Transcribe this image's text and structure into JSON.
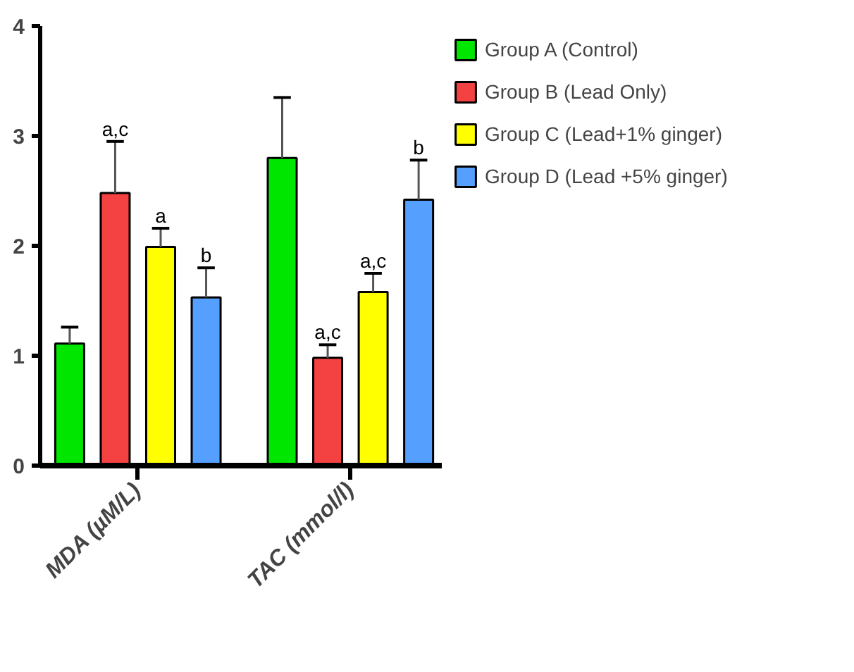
{
  "chart_data": {
    "type": "bar",
    "categories": [
      "MDA (µM/L)",
      "TAC (mmol/l)"
    ],
    "series": [
      {
        "name": "Group A (Control)",
        "color": "#00e600",
        "values": [
          1.11,
          2.8
        ],
        "errors": [
          [
            1.11,
            1.26
          ],
          [
            2.8,
            3.35
          ]
        ]
      },
      {
        "name": "Group B (Lead Only)",
        "color": "#f44242",
        "values": [
          2.48,
          0.98
        ],
        "errors": [
          [
            2.48,
            2.95
          ],
          [
            0.98,
            1.1
          ]
        ],
        "value_labels": [
          "a,c",
          "a,c"
        ]
      },
      {
        "name": "Group C (Lead+1% ginger)",
        "color": "#ffff00",
        "values": [
          1.99,
          1.58
        ],
        "errors": [
          [
            1.99,
            2.16
          ],
          [
            1.58,
            1.75
          ]
        ],
        "value_labels": [
          "a",
          "a,c"
        ]
      },
      {
        "name": "Group D (Lead +5% ginger)",
        "color": "#55a0ff",
        "values": [
          1.53,
          2.42
        ],
        "errors": [
          [
            1.53,
            1.8
          ],
          [
            2.42,
            2.78
          ]
        ],
        "value_labels": [
          "b",
          "b"
        ]
      }
    ],
    "ylim": [
      0,
      4
    ],
    "yticks": [
      0,
      1,
      2,
      3,
      4
    ],
    "grid": false,
    "legend": "right"
  }
}
